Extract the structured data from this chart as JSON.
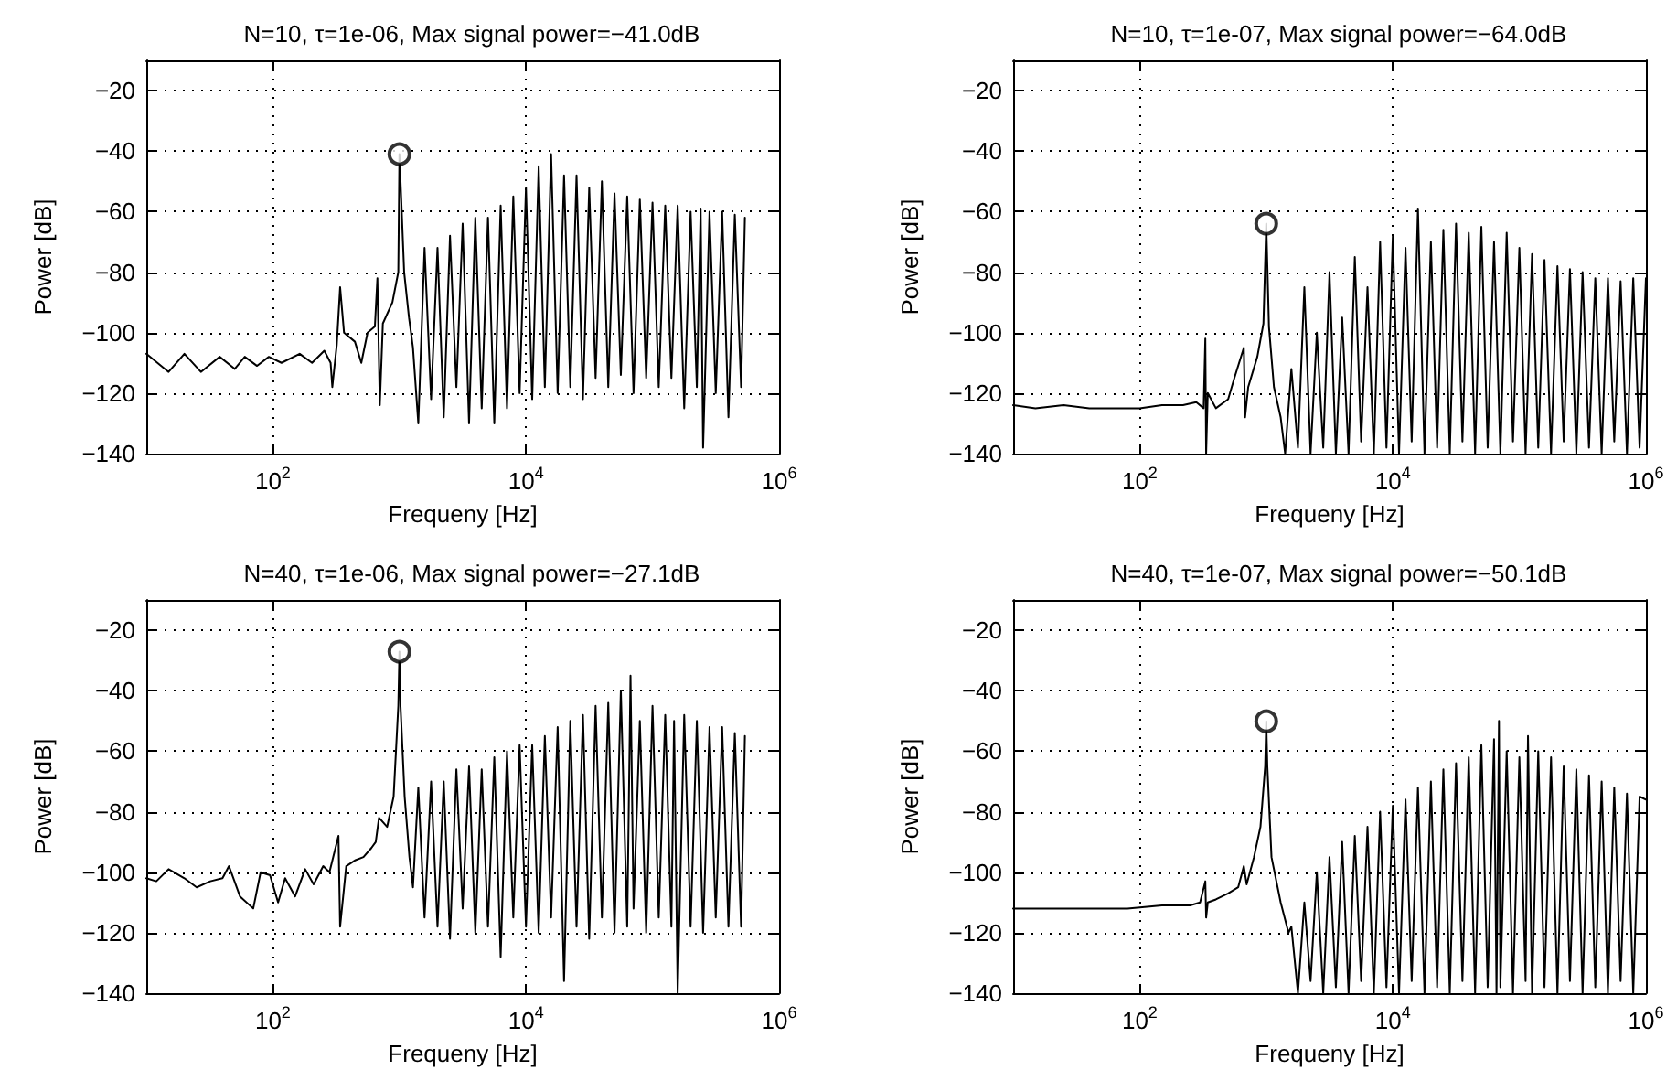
{
  "chart_data": [
    {
      "type": "line",
      "title": "N=10, τ=1e-06, Max signal power=−41.0dB",
      "xlabel": "Frequeny [Hz]",
      "ylabel": "Power [dB]",
      "log": "x",
      "grid": true,
      "marker": "none",
      "xlim": [
        10,
        1000000
      ],
      "ylim": [
        -140,
        -10
      ],
      "xticks": [
        {
          "value": 100,
          "label": "10$^{2}$"
        },
        {
          "value": 10000,
          "label": "10$^{4}$"
        },
        {
          "value": 1000000,
          "label": "10$^{6}$"
        }
      ],
      "yticks": [
        -140,
        -120,
        -100,
        -80,
        -60,
        -40,
        -20
      ],
      "series": [
        {
          "type": "line",
          "color": "#000000",
          "x": [
            10,
            15,
            20,
            27,
            38,
            50,
            60,
            75,
            93,
            117,
            163,
            204,
            255,
            286,
            295,
            320,
            340,
            365,
            445,
            500,
            560,
            640,
            670,
            700,
            740,
            880,
            980,
            1000,
            1090,
            1190,
            1280,
            1410,
            1580,
            1780,
            2000,
            2240,
            2510,
            2820,
            3160,
            3550,
            3980,
            4470,
            5010,
            5620,
            6310,
            7080,
            7940,
            8910,
            10000,
            11200,
            12600,
            14100,
            15800,
            17800,
            20000,
            22400,
            25100,
            28200,
            31600,
            35500,
            39800,
            44700,
            50100,
            56200,
            63100,
            70800,
            79400,
            89100,
            100000,
            112000,
            126000,
            141000,
            158000,
            178000,
            200000,
            224000,
            240000,
            251000,
            282000,
            316000,
            355000,
            398000,
            447000,
            501000,
            537000
          ],
          "values": [
            -107,
            -113,
            -107,
            -113,
            -108,
            -112,
            -108,
            -111,
            -108,
            -110,
            -107,
            -110,
            -106,
            -110,
            -118,
            -104,
            -85,
            -100,
            -103,
            -110,
            -100,
            -98,
            -82,
            -124,
            -97,
            -90,
            -80,
            -41,
            -80,
            -95,
            -105,
            -130,
            -72,
            -122,
            -72,
            -128,
            -68,
            -118,
            -64,
            -130,
            -62,
            -125,
            -62,
            -130,
            -58,
            -125,
            -55,
            -120,
            -52,
            -122,
            -45,
            -118,
            -41,
            -120,
            -48,
            -118,
            -48,
            -122,
            -52,
            -115,
            -50,
            -118,
            -54,
            -114,
            -55,
            -120,
            -56,
            -115,
            -57,
            -118,
            -58,
            -115,
            -58,
            -125,
            -60,
            -118,
            -59,
            -138,
            -60,
            -120,
            -60,
            -128,
            -61,
            -118,
            -62
          ]
        },
        {
          "type": "scatter",
          "marker": "circle",
          "color": "#000000",
          "x": [
            1000
          ],
          "values": [
            -41.0
          ]
        }
      ]
    },
    {
      "type": "line",
      "title": "N=10, τ=1e-07, Max signal power=−64.0dB",
      "xlabel": "Frequeny [Hz]",
      "ylabel": "Power [dB]",
      "log": "x",
      "grid": true,
      "marker": "none",
      "xlim": [
        10,
        1000000
      ],
      "ylim": [
        -140,
        -10
      ],
      "xticks": [
        {
          "value": 100,
          "label": "10$^{2}$"
        },
        {
          "value": 10000,
          "label": "10$^{4}$"
        },
        {
          "value": 1000000,
          "label": "10$^{6}$"
        }
      ],
      "yticks": [
        -140,
        -120,
        -100,
        -80,
        -60,
        -40,
        -20
      ],
      "series": [
        {
          "type": "line",
          "color": "#000000",
          "x": [
            10,
            15,
            25,
            40,
            60,
            100,
            150,
            220,
            280,
            320,
            330,
            335,
            345,
            400,
            500,
            560,
            665,
            680,
            720,
            850,
            950,
            1000,
            1050,
            1150,
            1300,
            1410,
            1580,
            1780,
            2000,
            2240,
            2510,
            2820,
            3160,
            3550,
            3980,
            4470,
            5010,
            5620,
            6310,
            7080,
            7940,
            8910,
            10000,
            11200,
            12600,
            14100,
            15800,
            17800,
            20000,
            22400,
            25100,
            28200,
            31600,
            35500,
            39800,
            44700,
            50100,
            56200,
            63100,
            70800,
            79400,
            89100,
            100000,
            112000,
            126000,
            141000,
            158000,
            178000,
            200000,
            224000,
            251000,
            282000,
            316000,
            355000,
            398000,
            447000,
            501000,
            562000,
            631000,
            708000,
            794000,
            891000,
            1000000
          ],
          "values": [
            -124,
            -125,
            -124,
            -125,
            -125,
            -125,
            -124,
            -124,
            -123,
            -125,
            -102,
            -140,
            -120,
            -125,
            -122,
            -115,
            -105,
            -128,
            -118,
            -108,
            -97,
            -64,
            -98,
            -118,
            -128,
            -140,
            -112,
            -138,
            -85,
            -140,
            -100,
            -138,
            -80,
            -140,
            -95,
            -140,
            -75,
            -136,
            -85,
            -140,
            -70,
            -138,
            -68,
            -140,
            -72,
            -136,
            -59,
            -140,
            -70,
            -138,
            -66,
            -140,
            -64,
            -136,
            -67,
            -140,
            -65,
            -138,
            -70,
            -140,
            -67,
            -136,
            -72,
            -140,
            -74,
            -138,
            -76,
            -140,
            -78,
            -136,
            -79,
            -140,
            -80,
            -138,
            -82,
            -140,
            -82,
            -136,
            -83,
            -140,
            -82,
            -138,
            -82
          ]
        },
        {
          "type": "scatter",
          "marker": "circle",
          "color": "#000000",
          "x": [
            1000
          ],
          "values": [
            -64.0
          ]
        }
      ]
    },
    {
      "type": "line",
      "title": "N=40, τ=1e-06, Max signal power=−27.1dB",
      "xlabel": "Frequeny [Hz]",
      "ylabel": "Power [dB]",
      "log": "x",
      "grid": true,
      "marker": "none",
      "xlim": [
        10,
        1000000
      ],
      "ylim": [
        -140,
        -10
      ],
      "xticks": [
        {
          "value": 100,
          "label": "10$^{2}$"
        },
        {
          "value": 10000,
          "label": "10$^{4}$"
        },
        {
          "value": 1000000,
          "label": "10$^{6}$"
        }
      ],
      "yticks": [
        -140,
        -120,
        -100,
        -80,
        -60,
        -40,
        -20
      ],
      "series": [
        {
          "type": "line",
          "color": "#000000",
          "x": [
            10,
            12,
            15,
            20,
            25,
            32,
            40,
            45,
            55,
            70,
            80,
            95,
            110,
            125,
            150,
            180,
            210,
            250,
            280,
            330,
            340,
            380,
            450,
            520,
            600,
            650,
            690,
            800,
            900,
            980,
            1000,
            1020,
            1100,
            1200,
            1280,
            1410,
            1580,
            1780,
            2000,
            2240,
            2510,
            2820,
            3160,
            3550,
            3980,
            4470,
            5010,
            5620,
            6310,
            7080,
            7940,
            8910,
            10000,
            11200,
            12600,
            14100,
            15800,
            17800,
            20000,
            22400,
            25100,
            28200,
            31600,
            35500,
            39800,
            44700,
            50100,
            56200,
            63100,
            67000,
            70800,
            79400,
            89100,
            100000,
            112000,
            126000,
            141000,
            148000,
            158000,
            178000,
            200000,
            224000,
            251000,
            282000,
            316000,
            355000,
            398000,
            447000,
            501000,
            537000
          ],
          "values": [
            -102,
            -103,
            -99,
            -102,
            -105,
            -103,
            -102,
            -98,
            -108,
            -112,
            -100,
            -101,
            -110,
            -102,
            -108,
            -99,
            -104,
            -98,
            -100,
            -88,
            -118,
            -98,
            -96,
            -95,
            -92,
            -90,
            -82,
            -85,
            -75,
            -45,
            -27.1,
            -45,
            -75,
            -95,
            -105,
            -72,
            -115,
            -70,
            -118,
            -70,
            -122,
            -66,
            -112,
            -65,
            -120,
            -66,
            -118,
            -62,
            -128,
            -60,
            -115,
            -58,
            -118,
            -58,
            -120,
            -55,
            -115,
            -52,
            -136,
            -50,
            -118,
            -48,
            -122,
            -45,
            -115,
            -44,
            -120,
            -40,
            -118,
            -35,
            -112,
            -50,
            -120,
            -45,
            -115,
            -48,
            -118,
            -50,
            -140,
            -48,
            -118,
            -50,
            -120,
            -52,
            -115,
            -52,
            -118,
            -54,
            -118,
            -55
          ]
        },
        {
          "type": "scatter",
          "marker": "circle",
          "color": "#000000",
          "x": [
            1000
          ],
          "values": [
            -27.1
          ]
        }
      ]
    },
    {
      "type": "line",
      "title": "N=40, τ=1e-07, Max signal power=−50.1dB",
      "xlabel": "Frequeny [Hz]",
      "ylabel": "Power [dB]",
      "log": "x",
      "grid": true,
      "marker": "none",
      "xlim": [
        10,
        1000000
      ],
      "ylim": [
        -140,
        -10
      ],
      "xticks": [
        {
          "value": 100,
          "label": "10$^{2}$"
        },
        {
          "value": 10000,
          "label": "10$^{4}$"
        },
        {
          "value": 1000000,
          "label": "10$^{6}$"
        }
      ],
      "yticks": [
        -140,
        -120,
        -100,
        -80,
        -60,
        -40,
        -20
      ],
      "series": [
        {
          "type": "line",
          "color": "#000000",
          "x": [
            10,
            20,
            40,
            80,
            150,
            250,
            300,
            330,
            335,
            345,
            400,
            500,
            600,
            665,
            700,
            800,
            900,
            980,
            1000,
            1020,
            1100,
            1300,
            1500,
            1580,
            1780,
            2000,
            2240,
            2510,
            2820,
            3160,
            3550,
            3980,
            4470,
            5010,
            5620,
            6310,
            7080,
            7940,
            8910,
            10000,
            11200,
            12600,
            14100,
            15800,
            17800,
            20000,
            22400,
            25100,
            28200,
            31600,
            35500,
            39800,
            44700,
            50100,
            56200,
            63100,
            66000,
            69000,
            70800,
            79400,
            89100,
            100000,
            112000,
            117000,
            126000,
            141000,
            158000,
            178000,
            200000,
            224000,
            251000,
            282000,
            316000,
            355000,
            398000,
            447000,
            501000,
            562000,
            631000,
            708000,
            794000,
            891000,
            1000000
          ],
          "values": [
            -112,
            -112,
            -112,
            -112,
            -111,
            -111,
            -110,
            -103,
            -115,
            -110,
            -109,
            -107,
            -105,
            -98,
            -104,
            -95,
            -85,
            -65,
            -50.1,
            -65,
            -95,
            -110,
            -120,
            -118,
            -140,
            -110,
            -136,
            -100,
            -140,
            -95,
            -138,
            -90,
            -140,
            -88,
            -136,
            -85,
            -140,
            -80,
            -138,
            -78,
            -140,
            -76,
            -136,
            -72,
            -140,
            -70,
            -138,
            -66,
            -140,
            -64,
            -136,
            -62,
            -140,
            -58,
            -138,
            -56,
            -140,
            -50,
            -138,
            -60,
            -140,
            -62,
            -136,
            -55,
            -140,
            -60,
            -138,
            -62,
            -140,
            -65,
            -136,
            -66,
            -140,
            -68,
            -138,
            -70,
            -140,
            -72,
            -136,
            -74,
            -140,
            -75,
            -76
          ]
        },
        {
          "type": "scatter",
          "marker": "circle",
          "color": "#000000",
          "x": [
            1000
          ],
          "values": [
            -50.1
          ]
        }
      ]
    }
  ]
}
